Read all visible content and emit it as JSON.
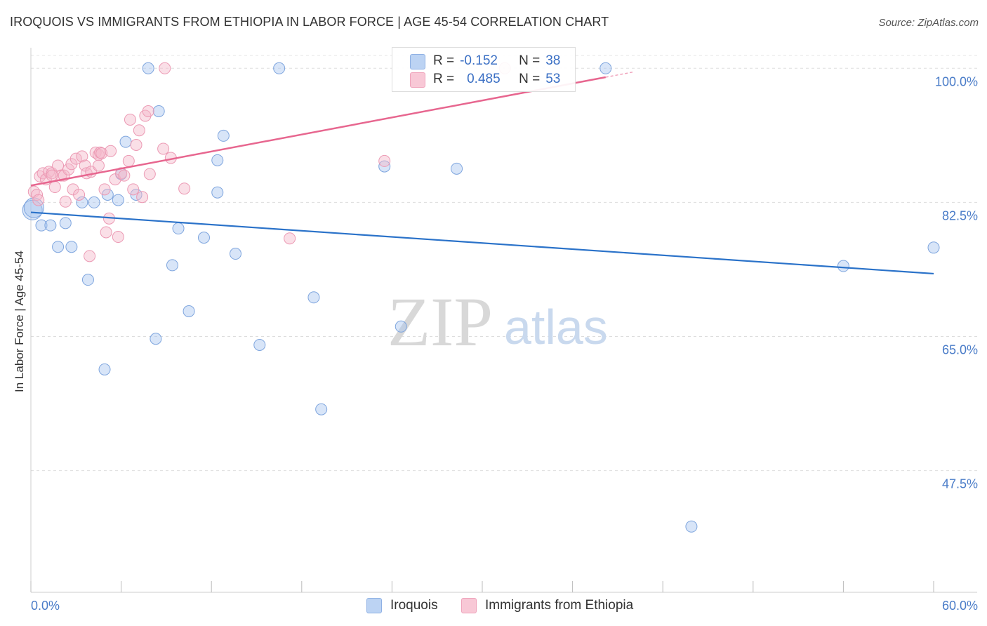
{
  "header": {
    "title": "IROQUOIS VS IMMIGRANTS FROM ETHIOPIA IN LABOR FORCE | AGE 45-54 CORRELATION CHART",
    "source": "Source: ZipAtlas.com"
  },
  "watermark": {
    "zip": "ZIP",
    "atlas": "atlas"
  },
  "legend": {
    "r_label": "R =",
    "n_label": "N =",
    "rows": [
      {
        "r": "-0.152",
        "n": "38"
      },
      {
        "r": "0.485",
        "n": "53"
      }
    ]
  },
  "chart_data": {
    "type": "scatter",
    "title": "IROQUOIS VS IMMIGRANTS FROM ETHIOPIA IN LABOR FORCE | AGE 45-54 CORRELATION CHART",
    "xlabel": "",
    "ylabel": "In Labor Force | Age 45-54",
    "xlim": [
      0,
      60
    ],
    "ylim": [
      31.8,
      102.5
    ],
    "x_tick_labels": [
      "0.0%",
      "60.0%"
    ],
    "y_ticks": [
      100.0,
      82.5,
      65.0,
      47.5
    ],
    "y_tick_labels": [
      "100.0%",
      "82.5%",
      "65.0%",
      "47.5%"
    ],
    "grid": true,
    "legend_position": "bottom",
    "series": [
      {
        "name": "Iroquois",
        "color": "#a9c6ef",
        "trend_color": "#2a72c9",
        "trend": {
          "x": [
            0,
            60
          ],
          "y": [
            81.2,
            73.2
          ]
        },
        "points": [
          {
            "x": 0.1,
            "y": 81.5
          },
          {
            "x": 0.7,
            "y": 79.5
          },
          {
            "x": 1.3,
            "y": 79.5
          },
          {
            "x": 1.8,
            "y": 76.7
          },
          {
            "x": 2.3,
            "y": 79.8
          },
          {
            "x": 2.7,
            "y": 76.7
          },
          {
            "x": 3.4,
            "y": 82.5
          },
          {
            "x": 3.8,
            "y": 72.4
          },
          {
            "x": 4.2,
            "y": 82.5
          },
          {
            "x": 4.9,
            "y": 60.7
          },
          {
            "x": 5.1,
            "y": 83.5
          },
          {
            "x": 5.8,
            "y": 82.8
          },
          {
            "x": 6.0,
            "y": 86.2
          },
          {
            "x": 6.3,
            "y": 90.4
          },
          {
            "x": 7.0,
            "y": 83.5
          },
          {
            "x": 7.8,
            "y": 100.0
          },
          {
            "x": 8.3,
            "y": 64.7
          },
          {
            "x": 8.5,
            "y": 94.4
          },
          {
            "x": 9.4,
            "y": 74.3
          },
          {
            "x": 9.8,
            "y": 79.1
          },
          {
            "x": 10.5,
            "y": 68.3
          },
          {
            "x": 11.5,
            "y": 77.9
          },
          {
            "x": 12.4,
            "y": 83.8
          },
          {
            "x": 12.4,
            "y": 88.0
          },
          {
            "x": 12.8,
            "y": 91.2
          },
          {
            "x": 13.6,
            "y": 75.8
          },
          {
            "x": 15.2,
            "y": 63.9
          },
          {
            "x": 16.5,
            "y": 100.0
          },
          {
            "x": 18.8,
            "y": 70.1
          },
          {
            "x": 19.3,
            "y": 55.5
          },
          {
            "x": 23.5,
            "y": 87.2
          },
          {
            "x": 24.6,
            "y": 66.3
          },
          {
            "x": 28.3,
            "y": 86.9
          },
          {
            "x": 38.2,
            "y": 100.0
          },
          {
            "x": 43.9,
            "y": 40.2
          },
          {
            "x": 54.0,
            "y": 74.2
          },
          {
            "x": 60.0,
            "y": 76.6
          },
          {
            "x": 0.2,
            "y": 81.8
          }
        ]
      },
      {
        "name": "Immigrants from Ethiopia",
        "color": "#f5b7ca",
        "trend_color": "#e7668f",
        "trend": {
          "x": [
            0,
            40
          ],
          "y": [
            84.7,
            99.5
          ]
        },
        "points": [
          {
            "x": 0.2,
            "y": 83.9
          },
          {
            "x": 0.4,
            "y": 83.5
          },
          {
            "x": 0.6,
            "y": 85.9
          },
          {
            "x": 0.8,
            "y": 86.3
          },
          {
            "x": 1.0,
            "y": 85.5
          },
          {
            "x": 1.2,
            "y": 86.5
          },
          {
            "x": 1.4,
            "y": 86.3
          },
          {
            "x": 1.6,
            "y": 84.5
          },
          {
            "x": 1.8,
            "y": 87.3
          },
          {
            "x": 2.0,
            "y": 86.0
          },
          {
            "x": 2.2,
            "y": 86.0
          },
          {
            "x": 2.3,
            "y": 82.6
          },
          {
            "x": 2.5,
            "y": 86.8
          },
          {
            "x": 2.7,
            "y": 87.5
          },
          {
            "x": 2.8,
            "y": 84.2
          },
          {
            "x": 3.0,
            "y": 88.2
          },
          {
            "x": 3.2,
            "y": 83.5
          },
          {
            "x": 3.4,
            "y": 88.5
          },
          {
            "x": 3.6,
            "y": 87.3
          },
          {
            "x": 3.7,
            "y": 86.3
          },
          {
            "x": 3.9,
            "y": 75.5
          },
          {
            "x": 4.0,
            "y": 86.5
          },
          {
            "x": 4.3,
            "y": 89.0
          },
          {
            "x": 4.5,
            "y": 88.7
          },
          {
            "x": 4.5,
            "y": 87.3
          },
          {
            "x": 4.6,
            "y": 89.0
          },
          {
            "x": 4.7,
            "y": 88.9
          },
          {
            "x": 4.9,
            "y": 84.2
          },
          {
            "x": 5.0,
            "y": 78.6
          },
          {
            "x": 5.2,
            "y": 80.4
          },
          {
            "x": 5.3,
            "y": 89.2
          },
          {
            "x": 5.6,
            "y": 85.5
          },
          {
            "x": 5.8,
            "y": 78.0
          },
          {
            "x": 6.0,
            "y": 86.3
          },
          {
            "x": 6.2,
            "y": 86.0
          },
          {
            "x": 6.5,
            "y": 87.9
          },
          {
            "x": 6.6,
            "y": 93.3
          },
          {
            "x": 6.8,
            "y": 84.2
          },
          {
            "x": 7.0,
            "y": 90.0
          },
          {
            "x": 7.2,
            "y": 91.9
          },
          {
            "x": 7.4,
            "y": 83.2
          },
          {
            "x": 7.6,
            "y": 93.8
          },
          {
            "x": 7.8,
            "y": 94.4
          },
          {
            "x": 7.9,
            "y": 86.2
          },
          {
            "x": 8.8,
            "y": 89.5
          },
          {
            "x": 8.9,
            "y": 100.0
          },
          {
            "x": 9.3,
            "y": 88.3
          },
          {
            "x": 10.2,
            "y": 84.3
          },
          {
            "x": 17.2,
            "y": 77.8
          },
          {
            "x": 23.5,
            "y": 87.9
          },
          {
            "x": 31.5,
            "y": 100.0
          },
          {
            "x": 1.4,
            "y": 86.0
          },
          {
            "x": 0.5,
            "y": 82.8
          }
        ]
      }
    ]
  }
}
